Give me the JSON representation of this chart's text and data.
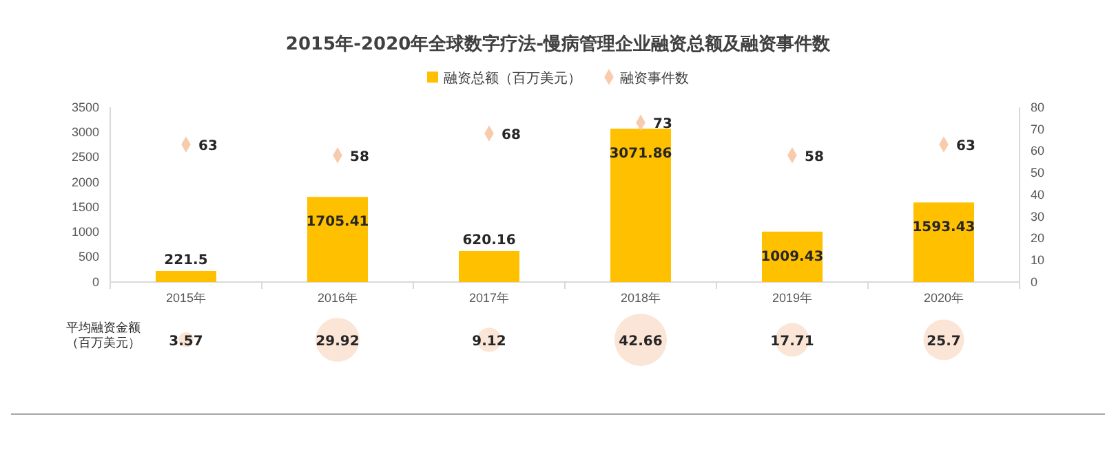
{
  "chart_data": [
    {
      "type": "bar",
      "title": "2015年-2020年全球数字疗法-慢病管理企业融资总额及融资事件数",
      "categories": [
        "2015年",
        "2016年",
        "2017年",
        "2018年",
        "2019年",
        "2020年"
      ],
      "series": [
        {
          "name": "融资总额（百万美元）",
          "color": "#ffc000",
          "values": [
            221.5,
            1705.41,
            620.16,
            3071.86,
            1009.43,
            1593.43
          ]
        },
        {
          "name": "融资事件数",
          "type": "scatter",
          "axis": "y2",
          "color": "#f8cbad",
          "values": [
            63,
            58,
            68,
            73,
            58,
            63
          ]
        }
      ],
      "marker": "diamond",
      "data_labels": true,
      "legend": "top",
      "ylim": [
        0,
        3500
      ],
      "yticks": [
        0,
        500,
        1000,
        1500,
        2000,
        2500,
        3000,
        3500
      ],
      "y2lim": [
        0,
        80
      ],
      "y2ticks": [
        0,
        10,
        20,
        30,
        40,
        50,
        60,
        70,
        80
      ]
    },
    {
      "type": "other",
      "ylabel": "平均融资金额（百万美元）",
      "values": [
        3.57,
        29.92,
        9.12,
        42.66,
        17.71,
        25.7
      ],
      "color": "#fbe5d6",
      "data_labels": true
    }
  ]
}
